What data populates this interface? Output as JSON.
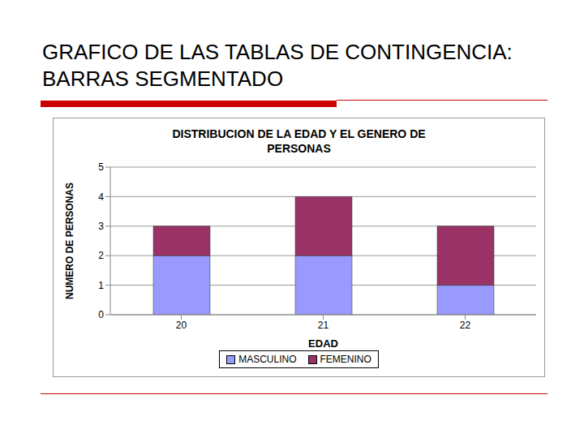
{
  "heading": "GRAFICO DE LAS TABLAS DE CONTINGENCIA: BARRAS SEGMENTADO",
  "chart_data": {
    "type": "bar",
    "title": "DISTRIBUCION DE LA EDAD Y EL GENERO DE PERSONAS",
    "x_label": "EDAD",
    "y_label": "NUMERO DE PERSONAS",
    "categories": [
      "20",
      "21",
      "22"
    ],
    "series": [
      {
        "name": "MASCULINO",
        "color": "#9999ff",
        "values": [
          2,
          2,
          1
        ]
      },
      {
        "name": "FEMENINO",
        "color": "#993366",
        "values": [
          1,
          2,
          2
        ]
      }
    ],
    "ylim": [
      0,
      5
    ],
    "yticks": [
      0,
      1,
      2,
      3,
      4,
      5
    ],
    "grid": true,
    "stacked": true,
    "legend": "bottom"
  }
}
